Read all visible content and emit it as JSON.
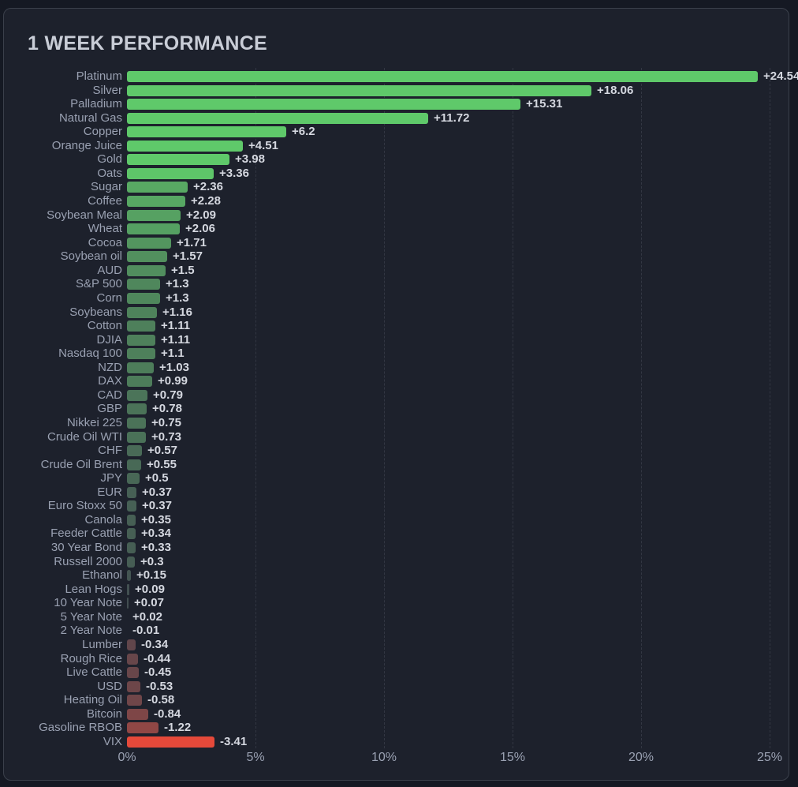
{
  "panel": {
    "title": "1 WEEK PERFORMANCE"
  },
  "chart_data": {
    "type": "bar",
    "orientation": "horizontal",
    "title": "1 WEEK PERFORMANCE",
    "xlabel": "",
    "ylabel": "",
    "x_range_pct": [
      0,
      26
    ],
    "x_ticks": [
      "0%",
      "5%",
      "10%",
      "15%",
      "20%",
      "25%"
    ],
    "x_tick_values": [
      0,
      5,
      10,
      15,
      20,
      25
    ],
    "grid": "vertical-dashed",
    "legend": "none",
    "value_unit": "percent",
    "colors": {
      "positive_max": "#5fc96a",
      "neutral": "#40454f",
      "negative_max": "#e8493a",
      "background": "#1d212c",
      "panel_border": "#3b404b",
      "label_text": "#9aa1b2",
      "value_text": "#d5d8e0",
      "title_text": "#c9cdd7"
    },
    "items": [
      {
        "label": "Platinum",
        "value": 24.54,
        "display": "+24.54"
      },
      {
        "label": "Silver",
        "value": 18.06,
        "display": "+18.06"
      },
      {
        "label": "Palladium",
        "value": 15.31,
        "display": "+15.31"
      },
      {
        "label": "Natural Gas",
        "value": 11.72,
        "display": "+11.72"
      },
      {
        "label": "Copper",
        "value": 6.2,
        "display": "+6.2"
      },
      {
        "label": "Orange Juice",
        "value": 4.51,
        "display": "+4.51"
      },
      {
        "label": "Gold",
        "value": 3.98,
        "display": "+3.98"
      },
      {
        "label": "Oats",
        "value": 3.36,
        "display": "+3.36"
      },
      {
        "label": "Sugar",
        "value": 2.36,
        "display": "+2.36"
      },
      {
        "label": "Coffee",
        "value": 2.28,
        "display": "+2.28"
      },
      {
        "label": "Soybean Meal",
        "value": 2.09,
        "display": "+2.09"
      },
      {
        "label": "Wheat",
        "value": 2.06,
        "display": "+2.06"
      },
      {
        "label": "Cocoa",
        "value": 1.71,
        "display": "+1.71"
      },
      {
        "label": "Soybean oil",
        "value": 1.57,
        "display": "+1.57"
      },
      {
        "label": "AUD",
        "value": 1.5,
        "display": "+1.5"
      },
      {
        "label": "S&P 500",
        "value": 1.3,
        "display": "+1.3"
      },
      {
        "label": "Corn",
        "value": 1.3,
        "display": "+1.3"
      },
      {
        "label": "Soybeans",
        "value": 1.16,
        "display": "+1.16"
      },
      {
        "label": "Cotton",
        "value": 1.11,
        "display": "+1.11"
      },
      {
        "label": "DJIA",
        "value": 1.11,
        "display": "+1.11"
      },
      {
        "label": "Nasdaq 100",
        "value": 1.1,
        "display": "+1.1"
      },
      {
        "label": "NZD",
        "value": 1.03,
        "display": "+1.03"
      },
      {
        "label": "DAX",
        "value": 0.99,
        "display": "+0.99"
      },
      {
        "label": "CAD",
        "value": 0.79,
        "display": "+0.79"
      },
      {
        "label": "GBP",
        "value": 0.78,
        "display": "+0.78"
      },
      {
        "label": "Nikkei 225",
        "value": 0.75,
        "display": "+0.75"
      },
      {
        "label": "Crude Oil WTI",
        "value": 0.73,
        "display": "+0.73"
      },
      {
        "label": "CHF",
        "value": 0.57,
        "display": "+0.57"
      },
      {
        "label": "Crude Oil Brent",
        "value": 0.55,
        "display": "+0.55"
      },
      {
        "label": "JPY",
        "value": 0.5,
        "display": "+0.5"
      },
      {
        "label": "EUR",
        "value": 0.37,
        "display": "+0.37"
      },
      {
        "label": "Euro Stoxx 50",
        "value": 0.37,
        "display": "+0.37"
      },
      {
        "label": "Canola",
        "value": 0.35,
        "display": "+0.35"
      },
      {
        "label": "Feeder Cattle",
        "value": 0.34,
        "display": "+0.34"
      },
      {
        "label": "30 Year Bond",
        "value": 0.33,
        "display": "+0.33"
      },
      {
        "label": "Russell 2000",
        "value": 0.3,
        "display": "+0.3"
      },
      {
        "label": "Ethanol",
        "value": 0.15,
        "display": "+0.15"
      },
      {
        "label": "Lean Hogs",
        "value": 0.09,
        "display": "+0.09"
      },
      {
        "label": "10 Year Note",
        "value": 0.07,
        "display": "+0.07"
      },
      {
        "label": "5 Year Note",
        "value": 0.02,
        "display": "+0.02"
      },
      {
        "label": "2 Year Note",
        "value": -0.01,
        "display": "-0.01"
      },
      {
        "label": "Lumber",
        "value": -0.34,
        "display": "-0.34"
      },
      {
        "label": "Rough Rice",
        "value": -0.44,
        "display": "-0.44"
      },
      {
        "label": "Live Cattle",
        "value": -0.45,
        "display": "-0.45"
      },
      {
        "label": "USD",
        "value": -0.53,
        "display": "-0.53"
      },
      {
        "label": "Heating Oil",
        "value": -0.58,
        "display": "-0.58"
      },
      {
        "label": "Bitcoin",
        "value": -0.84,
        "display": "-0.84"
      },
      {
        "label": "Gasoline RBOB",
        "value": -1.22,
        "display": "-1.22"
      },
      {
        "label": "VIX",
        "value": -3.41,
        "display": "-3.41"
      }
    ]
  }
}
